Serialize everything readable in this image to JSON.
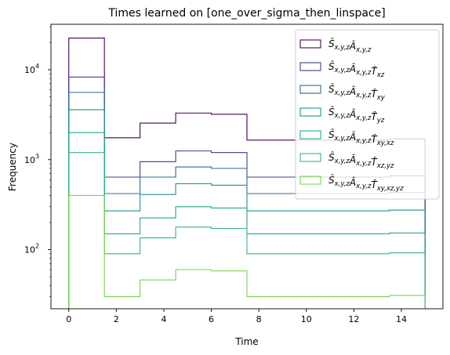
{
  "chart_data": {
    "type": "line",
    "step": "hist",
    "title": "Times learned on [one_over_sigma_then_linspace]",
    "xlabel": "Time",
    "ylabel": "Frequency",
    "xlim": [
      -0.75,
      15.75
    ],
    "ylim": [
      22,
      32000
    ],
    "yscale": "log",
    "grid": false,
    "legend_position": "top-right",
    "x_ticks": [
      0,
      2,
      4,
      6,
      8,
      10,
      12,
      14
    ],
    "x_tick_labels": [
      "0",
      "2",
      "4",
      "6",
      "8",
      "10",
      "12",
      "14"
    ],
    "y_ticks": [
      100,
      1000,
      10000
    ],
    "y_tick_labels": [
      "10",
      "10",
      "10"
    ],
    "y_tick_exponents": [
      "2",
      "3",
      "4"
    ],
    "bin_edges": [
      0,
      1.5,
      3,
      4.5,
      6,
      7.5,
      9,
      10.5,
      12,
      13.5,
      15
    ],
    "series": [
      {
        "name": "Ŝx,y,z Âx,y,z",
        "color": "#440154",
        "values": [
          22500,
          1750,
          2550,
          3300,
          3200,
          1650,
          1650,
          1650,
          1650,
          1700
        ]
      },
      {
        "name": "Ŝx,y,z Âx,y,z T̂xz",
        "color": "#443983",
        "values": [
          8300,
          640,
          950,
          1250,
          1200,
          640,
          640,
          640,
          640,
          660
        ]
      },
      {
        "name": "Ŝx,y,z Âx,y,z T̂xy",
        "color": "#31688e",
        "values": [
          5600,
          420,
          640,
          830,
          800,
          420,
          420,
          420,
          420,
          430
        ]
      },
      {
        "name": "Ŝx,y,z Âx,y,z T̂yz",
        "color": "#21918c",
        "values": [
          3600,
          270,
          410,
          540,
          520,
          270,
          270,
          270,
          270,
          275
        ]
      },
      {
        "name": "Ŝx,y,z Âx,y,z T̂xy,xz",
        "color": "#22a884",
        "values": [
          2000,
          150,
          225,
          300,
          290,
          150,
          150,
          150,
          150,
          153
        ]
      },
      {
        "name": "Ŝx,y,z Âx,y,z T̂xz,yz",
        "color": "#35b779",
        "values": [
          1200,
          90,
          135,
          178,
          172,
          90,
          90,
          90,
          90,
          92
        ]
      },
      {
        "name": "Ŝx,y,z Âx,y,z T̂xy,xz,yz",
        "color": "#7ad151",
        "values": [
          400,
          30,
          46,
          60,
          58,
          30,
          30,
          30,
          30,
          31
        ]
      }
    ]
  }
}
